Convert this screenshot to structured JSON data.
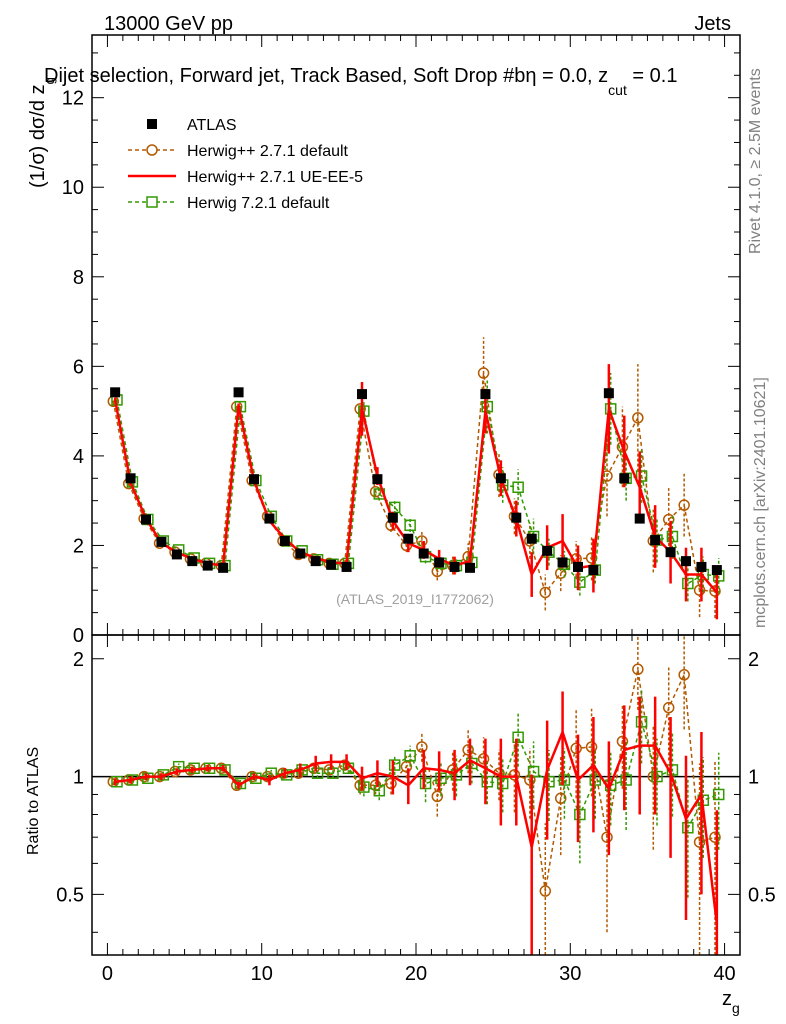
{
  "header": {
    "left": "13000 GeV pp",
    "right": "Jets",
    "title_main": "Dijet selection, Forward jet, Track Based, Soft Drop #b",
    "title_eta_sym": "η",
    "title_eta_rest": " = 0.0, z",
    "title_sub": "cut",
    "title_tail": " = 0.1"
  },
  "side": {
    "rivet": "Rivet 4.1.0, ≥ 2.5M events",
    "mcplots": "mcplots.cern.ch [arXiv:2401.10621]"
  },
  "watermark": "(ATLAS_2019_I1772062)",
  "axes": {
    "ylabel_top_prefix": "(1/σ) dσ/d z",
    "ylabel_top_sub": "g",
    "ylabel_bottom": "Ratio to ATLAS",
    "xlabel_main": "z",
    "xlabel_sub": "g"
  },
  "legend": [
    {
      "label": "ATLAS",
      "key": "atlas"
    },
    {
      "label": "Herwig++ 2.7.1 default",
      "key": "hdef"
    },
    {
      "label": "Herwig++ 2.7.1 UE-EE-5",
      "key": "hue"
    },
    {
      "label": "Herwig 7.2.1 default",
      "key": "h7"
    }
  ],
  "colors": {
    "atlas": "#000000",
    "hdef": "#b35900",
    "hue": "#ff0000",
    "h7": "#339900"
  },
  "chart_data": [
    {
      "type": "scatter",
      "panel": "main",
      "xlim": [
        -1,
        41
      ],
      "ylim": [
        0,
        13.4
      ],
      "xticks": [
        0,
        10,
        20,
        30,
        40
      ],
      "yticks": [
        0,
        2,
        4,
        6,
        8,
        10,
        12
      ],
      "x": [
        0.5,
        1.5,
        2.5,
        3.5,
        4.5,
        5.5,
        6.5,
        7.5,
        8.5,
        9.5,
        10.5,
        11.5,
        12.5,
        13.5,
        14.5,
        15.5,
        16.5,
        17.5,
        18.5,
        19.5,
        20.5,
        21.5,
        22.5,
        23.5,
        24.5,
        25.5,
        26.5,
        27.5,
        28.5,
        29.5,
        30.5,
        31.5,
        32.5,
        33.5,
        34.5,
        35.5,
        36.5,
        37.5,
        38.5,
        39.5
      ],
      "series": [
        {
          "name": "ATLAS",
          "key": "atlas",
          "values": [
            5.42,
            3.5,
            2.58,
            2.08,
            1.8,
            1.65,
            1.55,
            1.5,
            5.42,
            3.48,
            2.6,
            2.1,
            1.82,
            1.65,
            1.57,
            1.52,
            5.38,
            3.48,
            2.62,
            2.15,
            1.82,
            1.62,
            1.52,
            1.5,
            5.38,
            3.5,
            2.62,
            2.15,
            1.88,
            1.62,
            1.52,
            1.45,
            5.4,
            3.5,
            2.6,
            2.12,
            1.85,
            1.65,
            1.52,
            1.45
          ]
        },
        {
          "name": "Herwig++ 2.7.1 default",
          "key": "hdef",
          "values": [
            5.22,
            3.38,
            2.6,
            2.05,
            1.85,
            1.7,
            1.6,
            1.55,
            5.1,
            3.45,
            2.65,
            2.1,
            1.8,
            1.7,
            1.6,
            1.6,
            5.05,
            3.2,
            2.45,
            2.0,
            2.1,
            1.42,
            1.55,
            1.75,
            5.85,
            3.58,
            2.65,
            2.1,
            0.95,
            1.38,
            1.7,
            1.72,
            3.55,
            4.2,
            4.85,
            2.1,
            2.58,
            2.9,
            1.0,
            0.98
          ],
          "errors": [
            0.05,
            0.05,
            0.05,
            0.05,
            0.05,
            0.05,
            0.05,
            0.05,
            0.05,
            0.05,
            0.05,
            0.05,
            0.05,
            0.05,
            0.05,
            0.05,
            0.1,
            0.12,
            0.15,
            0.15,
            0.2,
            0.2,
            0.2,
            0.3,
            0.8,
            0.5,
            0.4,
            0.4,
            0.4,
            0.4,
            0.4,
            0.5,
            0.9,
            0.9,
            1.2,
            0.7,
            0.7,
            0.7,
            0.6,
            0.6
          ]
        },
        {
          "name": "Herwig++ 2.7.1 UE-EE-5",
          "key": "hue",
          "values": [
            5.25,
            3.4,
            2.6,
            2.05,
            1.85,
            1.7,
            1.6,
            1.55,
            5.12,
            3.45,
            2.55,
            2.15,
            1.85,
            1.72,
            1.62,
            1.6,
            5.05,
            3.55,
            2.55,
            2.05,
            1.9,
            1.7,
            1.55,
            1.65,
            5.0,
            3.5,
            2.6,
            1.35,
            1.95,
            2.1,
            1.5,
            1.55,
            5.05,
            4.1,
            3.3,
            2.2,
            1.85,
            1.35,
            1.35,
            0.95
          ],
          "errors": [
            0.05,
            0.05,
            0.05,
            0.05,
            0.05,
            0.05,
            0.05,
            0.05,
            0.05,
            0.05,
            0.05,
            0.05,
            0.05,
            0.05,
            0.05,
            0.05,
            0.6,
            0.2,
            0.2,
            0.2,
            0.2,
            0.2,
            0.2,
            0.2,
            0.5,
            0.4,
            0.4,
            0.5,
            0.5,
            0.6,
            0.5,
            0.6,
            1.0,
            0.8,
            0.8,
            0.7,
            0.7,
            0.6,
            0.6,
            0.6
          ]
        },
        {
          "name": "Herwig 7.2.1 default",
          "key": "h7",
          "values": [
            5.25,
            3.42,
            2.58,
            2.1,
            1.9,
            1.72,
            1.6,
            1.55,
            5.1,
            3.45,
            2.65,
            2.1,
            1.88,
            1.68,
            1.58,
            1.6,
            5.0,
            3.15,
            2.85,
            2.45,
            1.75,
            1.6,
            1.55,
            1.62,
            5.1,
            3.35,
            3.3,
            2.2,
            1.85,
            1.58,
            1.18,
            1.45,
            5.05,
            3.5,
            3.55,
            2.12,
            2.2,
            1.15,
            1.35,
            1.32
          ],
          "errors": [
            0.05,
            0.05,
            0.05,
            0.05,
            0.05,
            0.05,
            0.05,
            0.05,
            0.05,
            0.05,
            0.05,
            0.05,
            0.05,
            0.05,
            0.05,
            0.05,
            0.2,
            0.15,
            0.15,
            0.15,
            0.15,
            0.15,
            0.15,
            0.2,
            0.6,
            0.4,
            0.4,
            0.4,
            0.3,
            0.3,
            0.3,
            0.3,
            0.8,
            0.5,
            0.6,
            0.5,
            0.5,
            0.4,
            0.4,
            0.4
          ]
        }
      ]
    },
    {
      "type": "scatter",
      "panel": "ratio",
      "reference": "ATLAS",
      "xlim": [
        -1,
        41
      ],
      "ylim": [
        0.35,
        2.3
      ],
      "xticks": [
        0,
        10,
        20,
        30,
        40
      ],
      "yticks": [
        0.5,
        1,
        2
      ],
      "ytick_labels": [
        "0.5",
        "1",
        "2"
      ],
      "x": [
        0.5,
        1.5,
        2.5,
        3.5,
        4.5,
        5.5,
        6.5,
        7.5,
        8.5,
        9.5,
        10.5,
        11.5,
        12.5,
        13.5,
        14.5,
        15.5,
        16.5,
        17.5,
        18.5,
        19.5,
        20.5,
        21.5,
        22.5,
        23.5,
        24.5,
        25.5,
        26.5,
        27.5,
        28.5,
        29.5,
        30.5,
        31.5,
        32.5,
        33.5,
        34.5,
        35.5,
        36.5,
        37.5,
        38.5,
        39.5
      ],
      "series": [
        {
          "name": "Herwig++ 2.7.1 default",
          "key": "hdef",
          "values": [
            0.97,
            0.98,
            1.0,
            1.0,
            1.03,
            1.04,
            1.05,
            1.05,
            0.95,
            1.0,
            1.0,
            1.02,
            1.02,
            1.05,
            1.04,
            1.07,
            0.95,
            0.95,
            0.96,
            1.06,
            1.19,
            0.89,
            1.04,
            1.17,
            1.11,
            1.02,
            1.01,
            0.98,
            0.51,
            0.88,
            1.18,
            1.19,
            0.7,
            1.23,
            1.88,
            1.0,
            1.5,
            1.82,
            0.68,
            0.7
          ],
          "errors": [
            0.02,
            0.02,
            0.02,
            0.02,
            0.02,
            0.02,
            0.02,
            0.02,
            0.02,
            0.02,
            0.02,
            0.02,
            0.03,
            0.03,
            0.03,
            0.03,
            0.05,
            0.05,
            0.06,
            0.07,
            0.1,
            0.1,
            0.12,
            0.15,
            0.15,
            0.15,
            0.2,
            0.2,
            0.25,
            0.25,
            0.3,
            0.3,
            0.3,
            0.3,
            0.4,
            0.35,
            0.4,
            0.5,
            0.4,
            0.4
          ]
        },
        {
          "name": "Herwig++ 2.7.1 UE-EE-5",
          "key": "hue",
          "values": [
            0.97,
            0.98,
            1.0,
            1.0,
            1.03,
            1.04,
            1.05,
            1.05,
            0.95,
            1.0,
            0.98,
            1.02,
            1.04,
            1.08,
            1.09,
            1.09,
            0.99,
            1.02,
            1.0,
            0.95,
            1.05,
            1.04,
            1.02,
            1.1,
            1.05,
            1.0,
            1.0,
            0.66,
            1.04,
            1.3,
            0.98,
            1.07,
            0.93,
            1.17,
            1.2,
            1.2,
            1.02,
            0.78,
            0.9,
            0.42
          ],
          "errors": [
            0.02,
            0.02,
            0.02,
            0.02,
            0.02,
            0.02,
            0.02,
            0.02,
            0.02,
            0.02,
            0.03,
            0.03,
            0.04,
            0.05,
            0.05,
            0.05,
            0.07,
            0.08,
            0.1,
            0.1,
            0.12,
            0.12,
            0.15,
            0.15,
            0.2,
            0.25,
            0.25,
            0.35,
            0.35,
            0.35,
            0.3,
            0.35,
            0.3,
            0.35,
            0.4,
            0.4,
            0.4,
            0.35,
            0.4,
            0.4
          ]
        },
        {
          "name": "Herwig 7.2.1 default",
          "key": "h7",
          "values": [
            0.97,
            0.98,
            0.99,
            1.01,
            1.06,
            1.05,
            1.05,
            1.04,
            0.96,
            0.99,
            1.02,
            1.01,
            1.04,
            1.02,
            1.02,
            1.05,
            0.94,
            0.92,
            1.07,
            1.13,
            0.96,
            0.99,
            1.01,
            1.08,
            0.97,
            0.96,
            1.26,
            1.03,
            0.97,
            0.98,
            0.8,
            0.98,
            0.95,
            0.98,
            1.38,
            1.0,
            1.04,
            0.74,
            0.87,
            0.9
          ],
          "errors": [
            0.02,
            0.02,
            0.02,
            0.02,
            0.02,
            0.02,
            0.02,
            0.02,
            0.02,
            0.02,
            0.02,
            0.02,
            0.03,
            0.03,
            0.03,
            0.03,
            0.05,
            0.05,
            0.06,
            0.07,
            0.1,
            0.1,
            0.12,
            0.12,
            0.12,
            0.15,
            0.2,
            0.2,
            0.2,
            0.2,
            0.2,
            0.2,
            0.2,
            0.25,
            0.3,
            0.25,
            0.25,
            0.25,
            0.25,
            0.25
          ]
        }
      ]
    }
  ]
}
